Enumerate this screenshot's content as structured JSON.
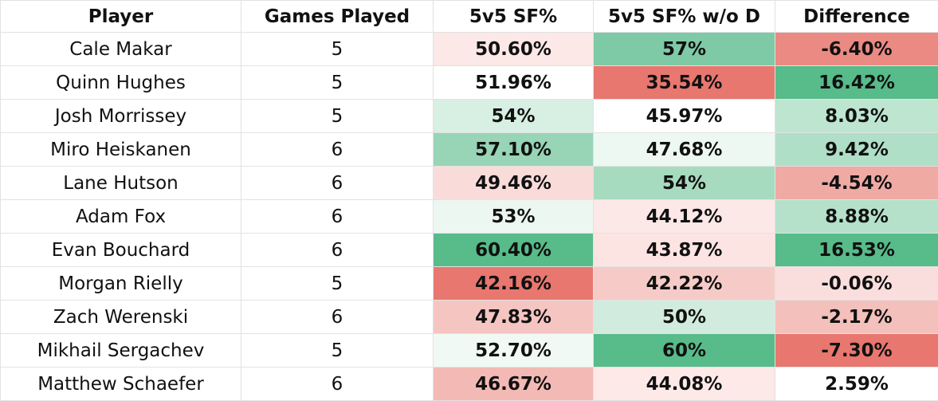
{
  "table": {
    "header": [
      "Player",
      "Games Played",
      "5v5 SF%",
      "5v5 SF% w/o D",
      "Difference"
    ],
    "rows": [
      [
        "Cale Makar",
        "5",
        "50.60%",
        "57%",
        "-6.40%"
      ],
      [
        "Quinn Hughes",
        "5",
        "51.96%",
        "35.54%",
        "16.42%"
      ],
      [
        "Josh Morrissey",
        "5",
        "54%",
        "45.97%",
        "8.03%"
      ],
      [
        "Miro Heiskanen",
        "6",
        "57.10%",
        "47.68%",
        "9.42%"
      ],
      [
        "Lane Hutson",
        "6",
        "49.46%",
        "54%",
        "-4.54%"
      ],
      [
        "Adam Fox",
        "6",
        "53%",
        "44.12%",
        "8.88%"
      ],
      [
        "Evan Bouchard",
        "6",
        "60.40%",
        "43.87%",
        "16.53%"
      ],
      [
        "Morgan Rielly",
        "5",
        "42.16%",
        "42.22%",
        "-0.06%"
      ],
      [
        "Zach Werenski",
        "6",
        "47.83%",
        "50%",
        "-2.17%"
      ],
      [
        "Mikhail Sergachev",
        "5",
        "52.70%",
        "60%",
        "-7.30%"
      ],
      [
        "Matthew Schaefer",
        "6",
        "46.67%",
        "44.08%",
        "2.59%"
      ]
    ],
    "cell_colors": [
      [
        "#fce8e7",
        "#7fcaa6",
        "#eb8a82"
      ],
      [
        "#ffffff",
        "#e8776f",
        "#57bb8a"
      ],
      [
        "#d8efe3",
        "#ffffff",
        "#bde5d0"
      ],
      [
        "#98d4b6",
        "#eef8f2",
        "#afdfc6"
      ],
      [
        "#f9dcda",
        "#a7dbc0",
        "#f0aaa4"
      ],
      [
        "#ecf7f1",
        "#fce8e7",
        "#b5e1ca"
      ],
      [
        "#57bb8a",
        "#fce4e2",
        "#57bb8a"
      ],
      [
        "#e8776f",
        "#f6cbc7",
        "#fadedd"
      ],
      [
        "#f5c5c1",
        "#d1ecde",
        "#f4c0bb"
      ],
      [
        "#f0f9f4",
        "#57bb8a",
        "#e8776f"
      ],
      [
        "#f3bab5",
        "#fde9e8",
        "#ffffff"
      ]
    ]
  }
}
